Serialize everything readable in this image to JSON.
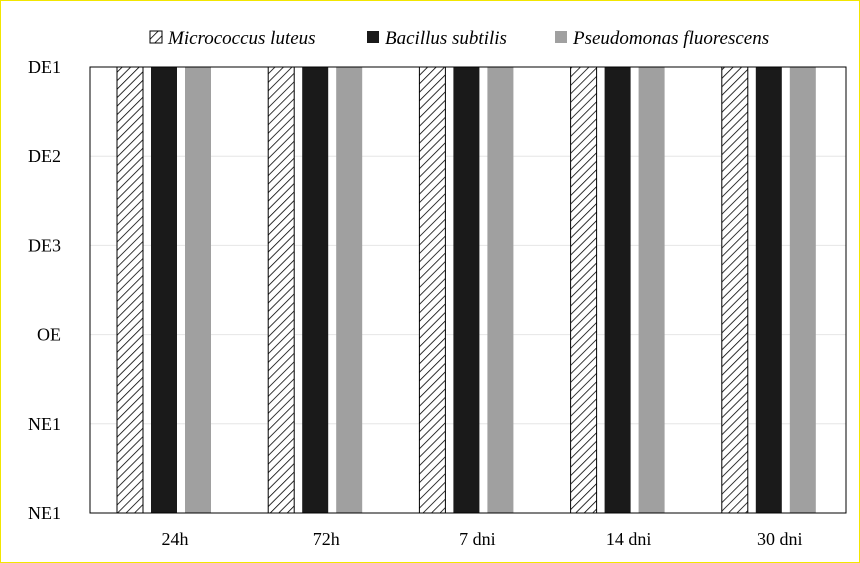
{
  "chart_data": {
    "type": "bar",
    "categories": [
      "24h",
      "72h",
      "7 dni",
      "14 dni",
      "30 dni"
    ],
    "y_categories": [
      "NE1",
      "NE1",
      "OE",
      "DE3",
      "DE2",
      "DE1"
    ],
    "series": [
      {
        "name": "Micrococcus luteus",
        "values": [
          "DE1",
          "DE1",
          "DE1",
          "DE1",
          "DE1"
        ],
        "color": "#ffffff",
        "pattern": "diagonal-hatch"
      },
      {
        "name": "Bacillus subtilis",
        "values": [
          "DE1",
          "DE1",
          "DE1",
          "DE1",
          "DE1"
        ],
        "color": "#1a1a1a"
      },
      {
        "name": "Pseudomonas fluorescens",
        "values": [
          "DE1",
          "DE1",
          "DE1",
          "DE1",
          "DE1"
        ],
        "color": "#a0a0a0"
      }
    ],
    "title": "",
    "xlabel": "",
    "ylabel": "",
    "legend": "top",
    "grid": true
  }
}
